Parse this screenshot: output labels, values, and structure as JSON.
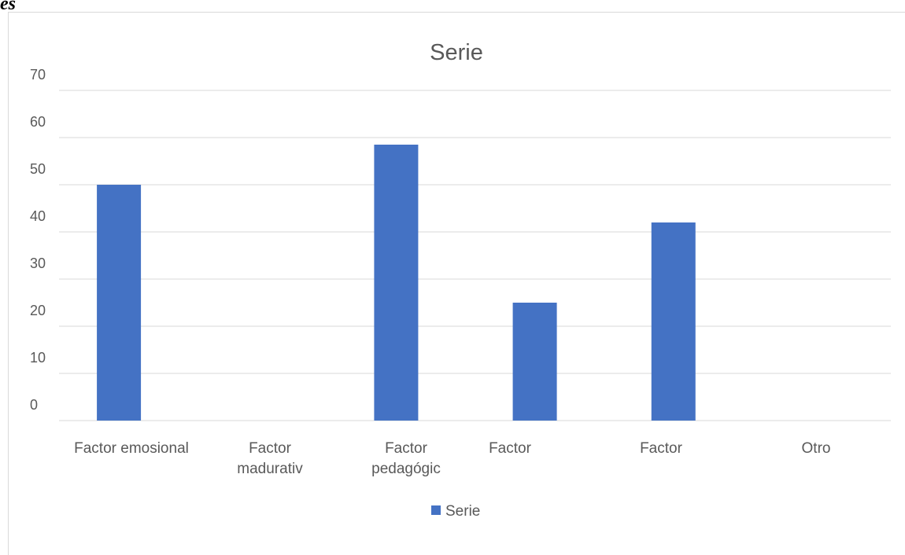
{
  "fragment_text": "es",
  "chart_data": {
    "type": "bar",
    "title": "Serie",
    "categories": [
      [
        "Factor emosional"
      ],
      [
        "Factor",
        "madurativ"
      ],
      [
        "Factor",
        "pedagógic"
      ],
      [
        "Factor"
      ],
      [
        "Factor"
      ],
      [
        "Otro"
      ]
    ],
    "series": [
      {
        "name": "Serie",
        "values": [
          50,
          0,
          58.5,
          25,
          42,
          0
        ]
      }
    ],
    "ylim": [
      0,
      70
    ],
    "yticks": [
      0,
      10,
      20,
      30,
      40,
      50,
      60,
      70
    ],
    "grid": true,
    "legend_position": "bottom",
    "colors": {
      "bar": "#4472c4",
      "grid": "#d9d9d9",
      "text": "#595959"
    }
  }
}
